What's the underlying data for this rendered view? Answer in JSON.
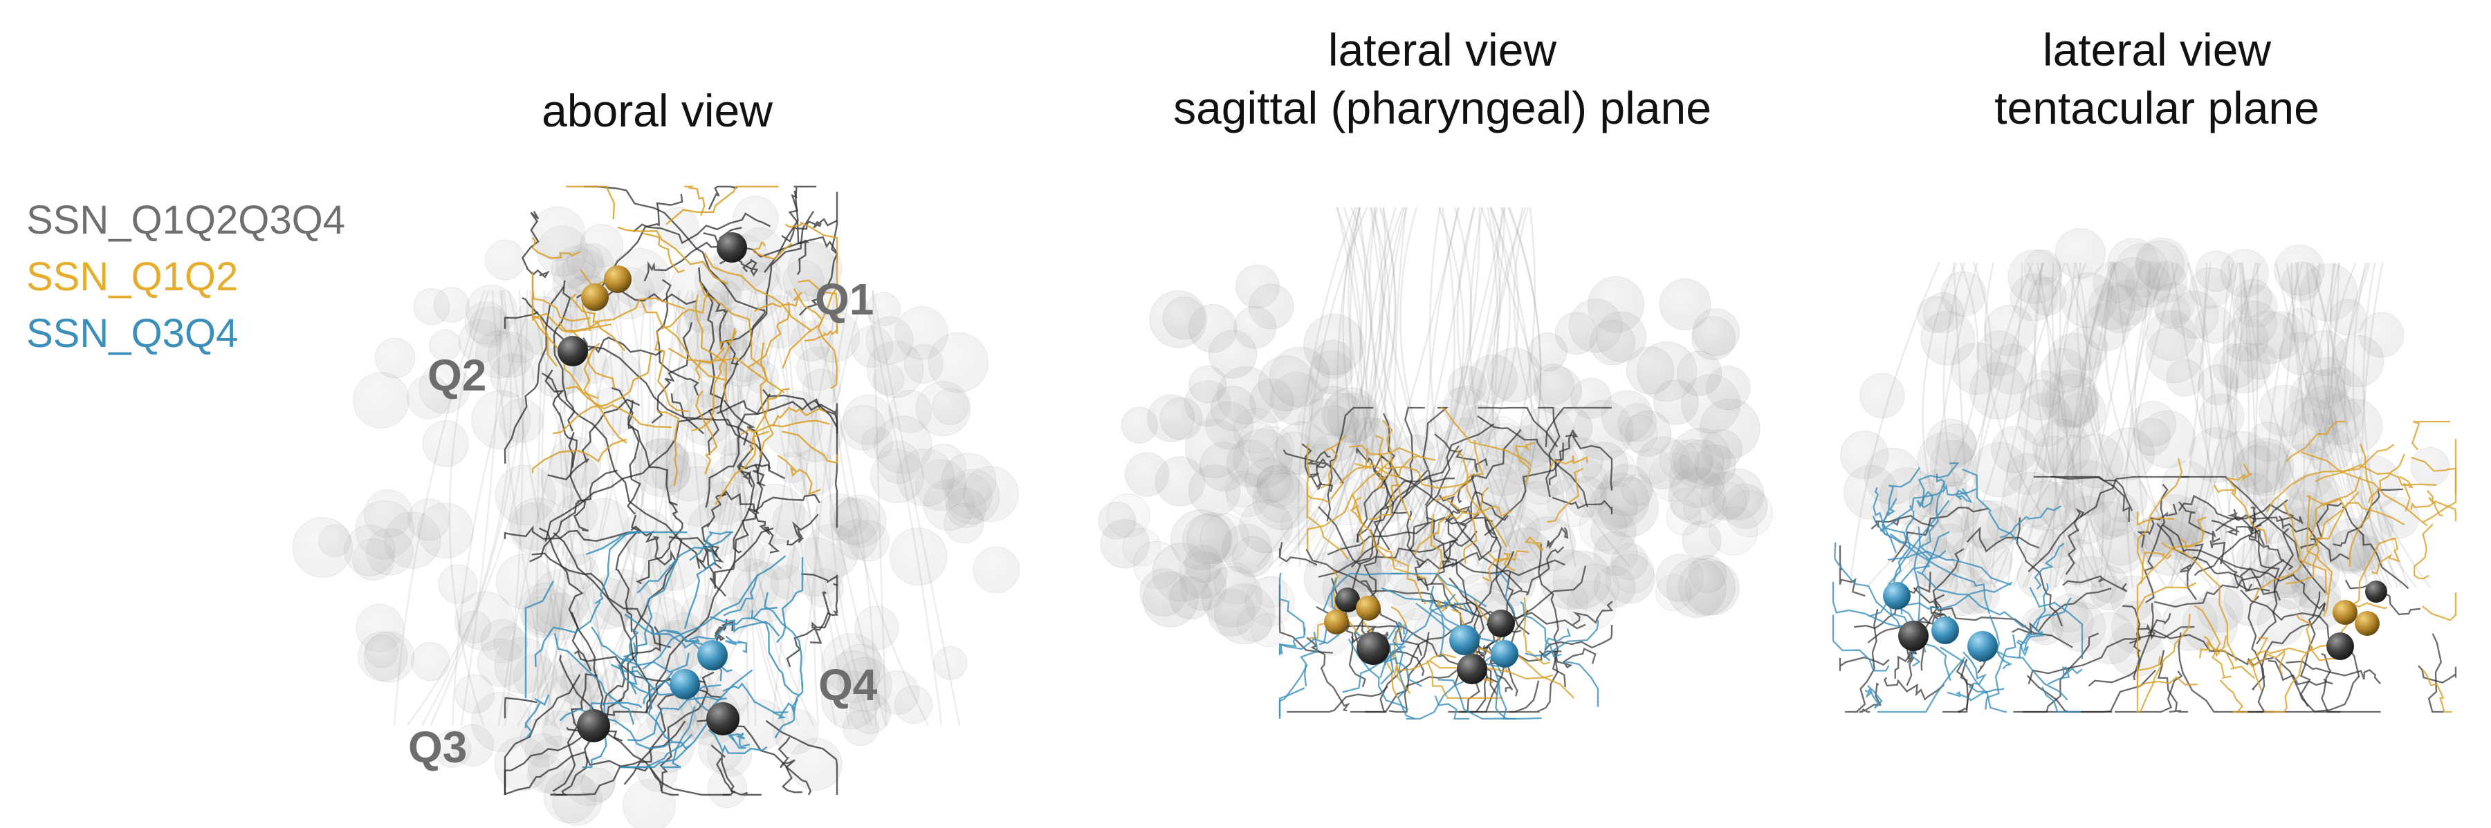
{
  "legend": [
    {
      "label": "SSN_Q1Q2Q3Q4",
      "color": "#6f6f6f"
    },
    {
      "label": "SSN_Q1Q2",
      "color": "#e5ad2b"
    },
    {
      "label": "SSN_Q3Q4",
      "color": "#3b8fba"
    }
  ],
  "panels": [
    {
      "title_lines": [
        "aboral view"
      ]
    },
    {
      "title_lines": [
        "lateral view",
        "sagittal (pharyngeal) plane"
      ]
    },
    {
      "title_lines": [
        "lateral view",
        "tentacular plane"
      ]
    }
  ],
  "quadrant_labels": [
    "Q1",
    "Q2",
    "Q3",
    "Q4"
  ],
  "colors": {
    "neuron_gray": "#3a3a3a",
    "neuron_orange": "#d9a02a",
    "neuron_blue": "#3b8fba",
    "cell_gray": "#9a9a9a"
  }
}
